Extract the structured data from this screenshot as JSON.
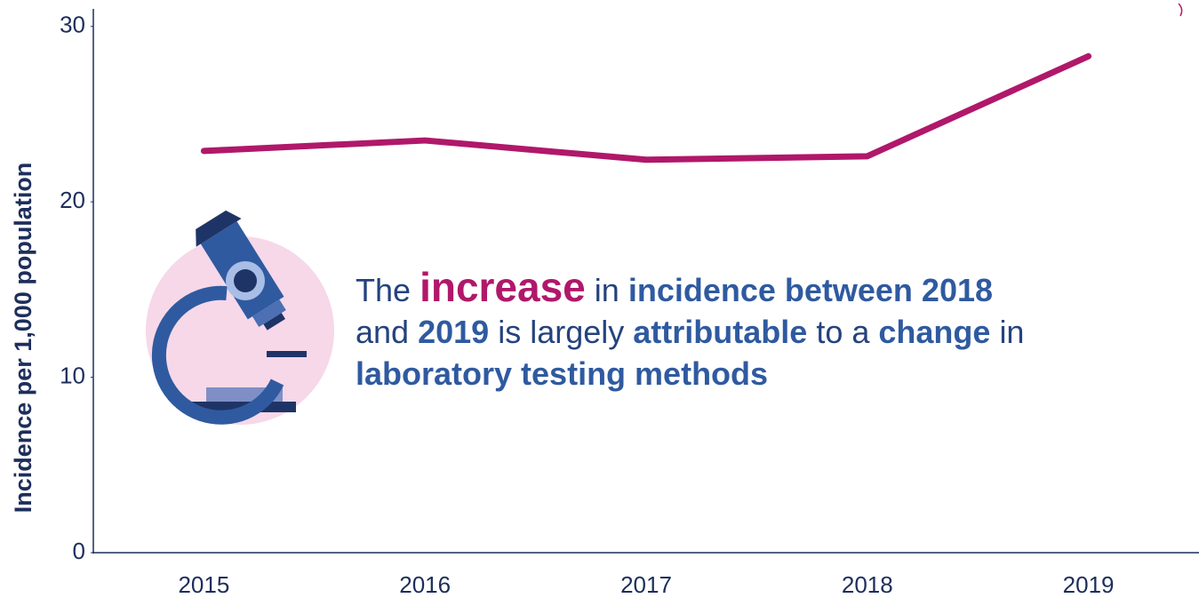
{
  "chart_data": {
    "type": "line",
    "y_label": "Incidence per 1,000 population",
    "categories": [
      "2015",
      "2016",
      "2017",
      "2018",
      "2019"
    ],
    "series": [
      {
        "name": "Incidence",
        "color": "#b0186a",
        "values": [
          22.9,
          23.5,
          22.4,
          22.6,
          28.3
        ]
      }
    ],
    "ylim": [
      0,
      31
    ],
    "yticks": [
      0,
      10,
      20,
      30
    ],
    "grid": false,
    "annotation": [
      [
        {
          "text": "The",
          "bold": false,
          "color": "#24427e"
        },
        {
          "text": "increase",
          "bold": true,
          "color": "#b0186a",
          "large": true
        },
        {
          "text": "in",
          "bold": false,
          "color": "#24427e"
        },
        {
          "text": "incidence between 2018",
          "bold": true,
          "color": "#2f5aa0"
        }
      ],
      [
        {
          "text": "and",
          "bold": false,
          "color": "#24427e"
        },
        {
          "text": "2019",
          "bold": true,
          "color": "#2f5aa0"
        },
        {
          "text": "is largely",
          "bold": false,
          "color": "#24427e"
        },
        {
          "text": "attributable",
          "bold": true,
          "color": "#2f5aa0"
        },
        {
          "text": "to a",
          "bold": false,
          "color": "#24427e"
        },
        {
          "text": "change",
          "bold": true,
          "color": "#2f5aa0"
        },
        {
          "text": "in",
          "bold": false,
          "color": "#24427e"
        }
      ],
      [
        {
          "text": "laboratory testing methods",
          "bold": true,
          "color": "#2f5aa0"
        }
      ]
    ]
  }
}
